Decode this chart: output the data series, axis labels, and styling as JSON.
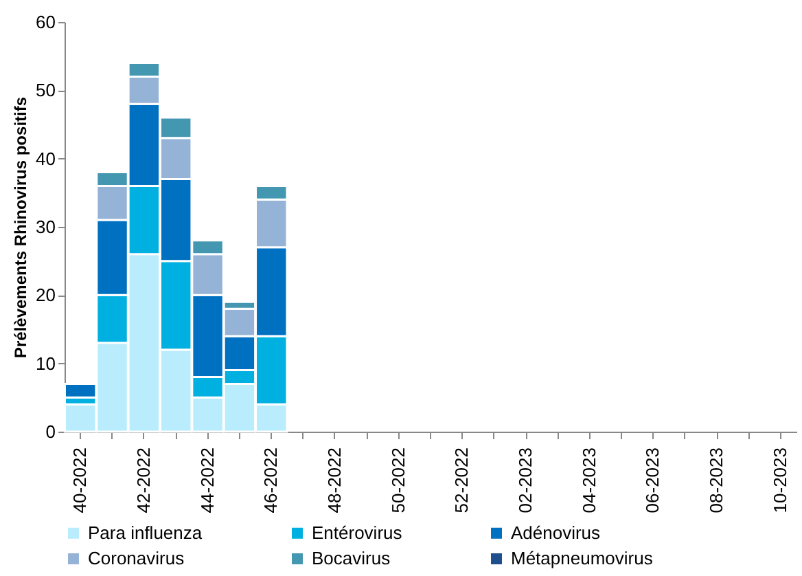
{
  "chart_data": {
    "type": "bar",
    "stacked": true,
    "ylabel": "Prélèvements Rhinovirus positifs",
    "categories": [
      "40-2022",
      null,
      "42-2022",
      null,
      "44-2022",
      null,
      "46-2022",
      null,
      "48-2022",
      null,
      "50-2022",
      null,
      "52-2022",
      null,
      "02-2023",
      null,
      "04-2023",
      null,
      "06-2023",
      null,
      "08-2023",
      null,
      "10-2023"
    ],
    "series": [
      {
        "name": "Para influenza",
        "color": "#b9ecfc",
        "values": [
          4,
          13,
          26,
          12,
          5,
          7,
          4,
          null,
          null,
          null,
          null,
          null,
          null,
          null,
          null,
          null,
          null,
          null,
          null,
          null,
          null,
          null,
          null
        ]
      },
      {
        "name": "Entérovirus",
        "color": "#00b0e0",
        "values": [
          1,
          7,
          10,
          13,
          3,
          2,
          10,
          null,
          null,
          null,
          null,
          null,
          null,
          null,
          null,
          null,
          null,
          null,
          null,
          null,
          null,
          null,
          null
        ]
      },
      {
        "name": "Adénovirus",
        "color": "#0070c0",
        "values": [
          2,
          11,
          12,
          12,
          12,
          5,
          13,
          null,
          null,
          null,
          null,
          null,
          null,
          null,
          null,
          null,
          null,
          null,
          null,
          null,
          null,
          null,
          null
        ]
      },
      {
        "name": "Coronavirus",
        "color": "#95b3d7",
        "values": [
          0,
          5,
          4,
          6,
          6,
          4,
          7,
          null,
          null,
          null,
          null,
          null,
          null,
          null,
          null,
          null,
          null,
          null,
          null,
          null,
          null,
          null,
          null
        ]
      },
      {
        "name": "Bocavirus",
        "color": "#4397b0",
        "values": [
          0,
          2,
          2,
          3,
          2,
          1,
          2,
          null,
          null,
          null,
          null,
          null,
          null,
          null,
          null,
          null,
          null,
          null,
          null,
          null,
          null,
          null,
          null
        ]
      },
      {
        "name": "Métapneumovirus",
        "color": "#1f4e8c",
        "values": [
          0,
          0,
          0,
          0,
          0,
          0,
          0,
          null,
          null,
          null,
          null,
          null,
          null,
          null,
          null,
          null,
          null,
          null,
          null,
          null,
          null,
          null,
          null
        ]
      }
    ],
    "ylim": [
      0,
      60
    ],
    "yticks": [
      0,
      10,
      20,
      30,
      40,
      50,
      60
    ],
    "grid": false,
    "legend": "bottom"
  }
}
